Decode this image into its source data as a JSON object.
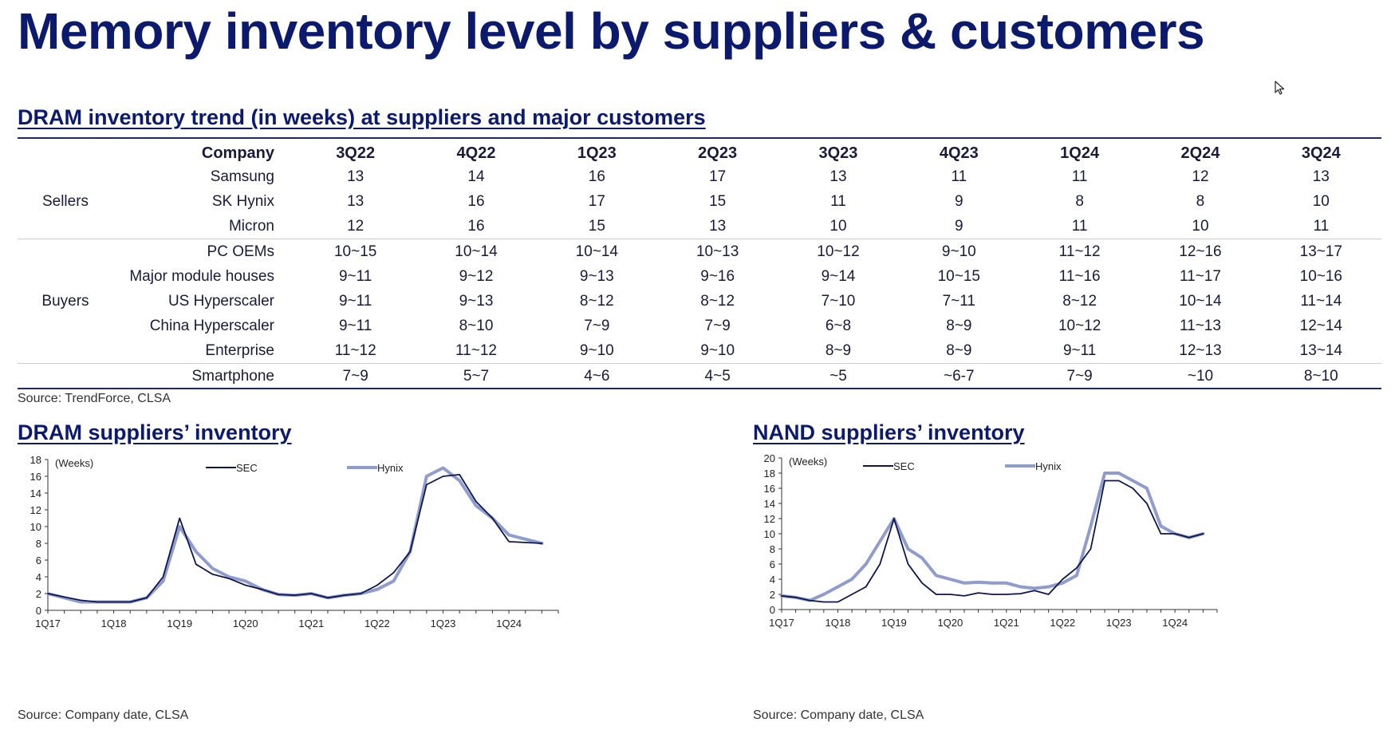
{
  "page": {
    "title": "Memory inventory level by suppliers & customers"
  },
  "table": {
    "title": "DRAM inventory trend (in weeks) at suppliers and major customers",
    "header": [
      "Company",
      "3Q22",
      "4Q22",
      "1Q23",
      "2Q23",
      "3Q23",
      "4Q23",
      "1Q24",
      "2Q24",
      "3Q24"
    ],
    "groups": [
      {
        "label": "Sellers",
        "rows": [
          {
            "company": "Samsung",
            "values": [
              "13",
              "14",
              "16",
              "17",
              "13",
              "11",
              "11",
              "12",
              "13"
            ]
          },
          {
            "company": "SK Hynix",
            "values": [
              "13",
              "16",
              "17",
              "15",
              "11",
              "9",
              "8",
              "8",
              "10"
            ]
          },
          {
            "company": "Micron",
            "values": [
              "12",
              "16",
              "15",
              "13",
              "10",
              "9",
              "11",
              "10",
              "11"
            ]
          }
        ]
      },
      {
        "label": "Buyers",
        "rows": [
          {
            "company": "PC OEMs",
            "values": [
              "10~15",
              "10~14",
              "10~14",
              "10~13",
              "10~12",
              "9~10",
              "11~12",
              "12~16",
              "13~17"
            ]
          },
          {
            "company": "Major module houses",
            "values": [
              "9~11",
              "9~12",
              "9~13",
              "9~16",
              "9~14",
              "10~15",
              "11~16",
              "11~17",
              "10~16"
            ]
          },
          {
            "company": "US Hyperscaler",
            "values": [
              "9~11",
              "9~13",
              "8~12",
              "8~12",
              "7~10",
              "7~11",
              "8~12",
              "10~14",
              "11~14"
            ]
          },
          {
            "company": "China Hyperscaler",
            "values": [
              "9~11",
              "8~10",
              "7~9",
              "7~9",
              "6~8",
              "8~9",
              "10~12",
              "11~13",
              "12~14"
            ]
          },
          {
            "company": "Enterprise",
            "values": [
              "11~12",
              "11~12",
              "9~10",
              "9~10",
              "8~9",
              "8~9",
              "9~11",
              "12~13",
              "13~14"
            ]
          }
        ]
      },
      {
        "label": "",
        "rows": [
          {
            "company": "Smartphone",
            "values": [
              "7~9",
              "5~7",
              "4~6",
              "4~5",
              "~5",
              "~6-7",
              "7~9",
              "~10",
              "8~10"
            ]
          }
        ]
      }
    ],
    "source": "Source: TrendForce, CLSA"
  },
  "colors": {
    "sec": "#0d1650",
    "hynix": "#8f9ccc",
    "title": "#0c1a6e"
  },
  "chart_data": [
    {
      "type": "line",
      "title": "DRAM suppliers’ inventory",
      "unit_label": "(Weeks)",
      "ylim": [
        0,
        18
      ],
      "yticks": [
        0,
        2,
        4,
        6,
        8,
        10,
        12,
        14,
        16,
        18
      ],
      "xlim": [
        0,
        31
      ],
      "xtick_labels": [
        {
          "pos": 0,
          "label": "1Q17"
        },
        {
          "pos": 4,
          "label": "1Q18"
        },
        {
          "pos": 8,
          "label": "1Q19"
        },
        {
          "pos": 12,
          "label": "1Q20"
        },
        {
          "pos": 16,
          "label": "1Q21"
        },
        {
          "pos": 20,
          "label": "1Q22"
        },
        {
          "pos": 24,
          "label": "1Q23"
        },
        {
          "pos": 28,
          "label": "1Q24"
        }
      ],
      "legend": "top",
      "grid": false,
      "series": [
        {
          "name": "SEC",
          "color": "#0d1650",
          "values": [
            2,
            1.6,
            1.2,
            1,
            1,
            1,
            1.5,
            4,
            11,
            5.5,
            4.3,
            3.8,
            3,
            2.5,
            1.9,
            1.8,
            2,
            1.5,
            1.8,
            2,
            3,
            4.5,
            7,
            15,
            16,
            16.2,
            13,
            11,
            8.2,
            8.1,
            8
          ]
        },
        {
          "name": "Hynix",
          "color": "#8f9ccc",
          "values": [
            2,
            1.5,
            1,
            1,
            1,
            1,
            1.5,
            3.5,
            10,
            7,
            5,
            4,
            3.5,
            2.5,
            1.9,
            1.8,
            2,
            1.5,
            1.8,
            2,
            2.5,
            3.5,
            7,
            16,
            17,
            15.5,
            12.5,
            11,
            9,
            8.5,
            8
          ]
        }
      ],
      "source": "Source: Company date, CLSA"
    },
    {
      "type": "line",
      "title": "NAND suppliers’ inventory",
      "unit_label": "(Weeks)",
      "ylim": [
        0,
        20
      ],
      "yticks": [
        0,
        2,
        4,
        6,
        8,
        10,
        12,
        14,
        16,
        18,
        20
      ],
      "xlim": [
        0,
        31
      ],
      "xtick_labels": [
        {
          "pos": 0,
          "label": "1Q17"
        },
        {
          "pos": 4,
          "label": "1Q18"
        },
        {
          "pos": 8,
          "label": "1Q19"
        },
        {
          "pos": 12,
          "label": "1Q20"
        },
        {
          "pos": 16,
          "label": "1Q21"
        },
        {
          "pos": 20,
          "label": "1Q22"
        },
        {
          "pos": 24,
          "label": "1Q23"
        },
        {
          "pos": 28,
          "label": "1Q24"
        }
      ],
      "legend": "top",
      "grid": false,
      "series": [
        {
          "name": "SEC",
          "color": "#0d1650",
          "values": [
            1.8,
            1.6,
            1.2,
            1,
            1,
            2,
            3,
            6,
            12,
            6,
            3.5,
            2,
            2,
            1.8,
            2.2,
            2,
            2,
            2.1,
            2.5,
            2,
            4,
            5.5,
            8,
            17,
            17,
            16,
            14,
            10,
            10,
            9.5,
            10
          ]
        },
        {
          "name": "Hynix",
          "color": "#8f9ccc",
          "values": [
            1.8,
            1.6,
            1.2,
            2,
            3,
            4,
            6,
            9,
            12,
            8,
            6.8,
            4.5,
            4,
            3.5,
            3.6,
            3.5,
            3.5,
            3,
            2.8,
            3,
            3.5,
            4.5,
            11,
            18,
            18,
            17,
            16,
            11,
            10,
            9.5,
            10
          ]
        }
      ],
      "source": "Source: Company date, CLSA"
    }
  ]
}
